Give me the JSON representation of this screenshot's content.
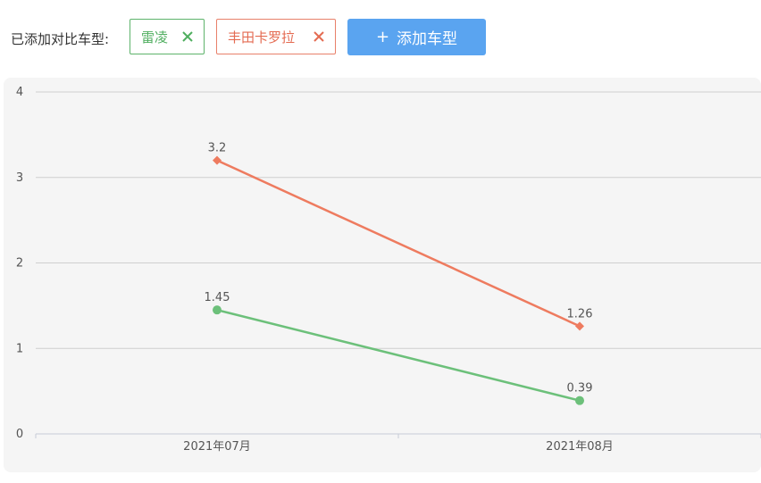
{
  "toolbar": {
    "label": "已添加对比车型:",
    "tags": [
      {
        "label": "雷凌",
        "color": "#4fae5f"
      },
      {
        "label": "丰田卡罗拉",
        "color": "#e46b52"
      }
    ],
    "add_button": {
      "plus": "+",
      "label": "添加车型"
    }
  },
  "chart_data": {
    "type": "line",
    "x": [
      "2021年07月",
      "2021年08月"
    ],
    "ylim": [
      0,
      4
    ],
    "yticks": [
      0,
      1,
      2,
      3,
      4
    ],
    "grid": true,
    "series": [
      {
        "name": "雷凌",
        "values": [
          1.45,
          0.39
        ],
        "value_labels": [
          "1.45",
          "0.39"
        ],
        "color": "#6cc07a",
        "marker": "circle"
      },
      {
        "name": "丰田卡罗拉",
        "values": [
          3.2,
          1.26
        ],
        "value_labels": [
          "3.2",
          "1.26"
        ],
        "color": "#ee7b5f",
        "marker": "diamond"
      }
    ]
  }
}
